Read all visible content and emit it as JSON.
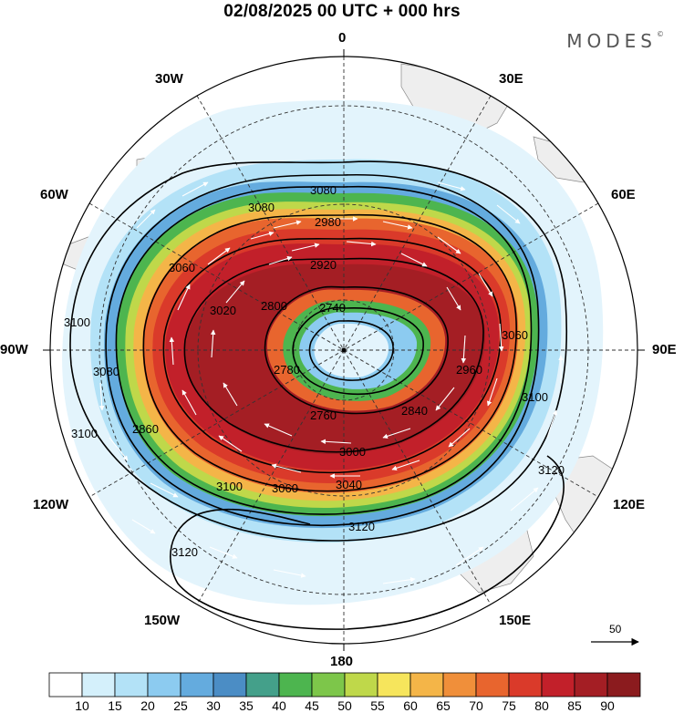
{
  "header": {
    "title": "02/08/2025  00 UTC  + 000 hrs",
    "brand": "MODES"
  },
  "longitude_labels": {
    "top": "0",
    "bottom": "180",
    "left": "90W",
    "right": "90E",
    "upper_left": "30W",
    "upper_right": "30E",
    "mid_upper_left": "60W",
    "mid_upper_right": "60E",
    "mid_lower_left": "120W",
    "mid_lower_right": "120E",
    "lower_left": "150W",
    "lower_right": "150E"
  },
  "contour_labels": [
    "3080",
    "3080",
    "3060",
    "3100",
    "3080",
    "3100",
    "3100",
    "3120",
    "3120",
    "3120",
    "3060",
    "3100",
    "2920",
    "2800",
    "2740",
    "2760",
    "2780",
    "2840",
    "2980",
    "3040",
    "3000",
    "3020",
    "2960",
    "3060",
    "2860"
  ],
  "colorbar": {
    "levels": [
      "10",
      "15",
      "20",
      "25",
      "30",
      "35",
      "40",
      "45",
      "50",
      "55",
      "60",
      "65",
      "70",
      "75",
      "80",
      "85",
      "90"
    ],
    "colors": [
      "#ffffff",
      "#d4f0fb",
      "#b3e2f7",
      "#8ccbf0",
      "#64abde",
      "#4b8dc5",
      "#44a08a",
      "#4db54f",
      "#7dc64a",
      "#bfd84a",
      "#f6e55c",
      "#f4b548",
      "#f08f3a",
      "#e8652e",
      "#da3a2a",
      "#c2202a",
      "#a41e24",
      "#8b1b1e"
    ]
  },
  "reference_vector": {
    "label": "50"
  }
}
